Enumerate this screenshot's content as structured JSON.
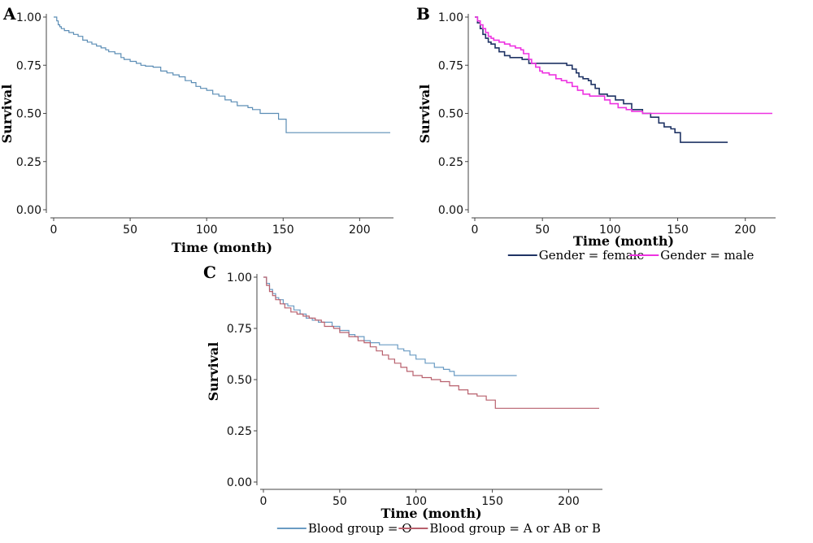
{
  "chart_data": [
    {
      "panel_label": "A",
      "type": "line",
      "step": true,
      "xlabel": "Time (month)",
      "ylabel": "Survival",
      "xlim": [
        0,
        220
      ],
      "ylim": [
        0,
        1
      ],
      "x_ticks": [
        "0",
        "50",
        "100",
        "150",
        "200"
      ],
      "y_ticks": [
        "0.00",
        "0.25",
        "0.50",
        "0.75",
        "1.00"
      ],
      "series": [
        {
          "color": "#5b8db5",
          "points": [
            [
              0,
              1.0
            ],
            [
              2,
              0.98
            ],
            [
              3,
              0.96
            ],
            [
              4,
              0.95
            ],
            [
              5,
              0.94
            ],
            [
              7,
              0.93
            ],
            [
              10,
              0.92
            ],
            [
              13,
              0.91
            ],
            [
              16,
              0.9
            ],
            [
              19,
              0.88
            ],
            [
              22,
              0.87
            ],
            [
              25,
              0.86
            ],
            [
              28,
              0.85
            ],
            [
              31,
              0.84
            ],
            [
              34,
              0.83
            ],
            [
              36,
              0.82
            ],
            [
              40,
              0.81
            ],
            [
              44,
              0.79
            ],
            [
              46,
              0.78
            ],
            [
              50,
              0.77
            ],
            [
              54,
              0.76
            ],
            [
              57,
              0.75
            ],
            [
              60,
              0.745
            ],
            [
              65,
              0.74
            ],
            [
              70,
              0.72
            ],
            [
              74,
              0.71
            ],
            [
              78,
              0.7
            ],
            [
              82,
              0.69
            ],
            [
              86,
              0.67
            ],
            [
              90,
              0.66
            ],
            [
              93,
              0.64
            ],
            [
              96,
              0.63
            ],
            [
              100,
              0.62
            ],
            [
              104,
              0.6
            ],
            [
              108,
              0.59
            ],
            [
              112,
              0.57
            ],
            [
              116,
              0.56
            ],
            [
              120,
              0.54
            ],
            [
              127,
              0.53
            ],
            [
              130,
              0.52
            ],
            [
              135,
              0.5
            ],
            [
              145,
              0.5
            ],
            [
              147,
              0.47
            ],
            [
              152,
              0.4
            ],
            [
              220,
              0.4
            ]
          ]
        }
      ]
    },
    {
      "panel_label": "B",
      "type": "line",
      "step": true,
      "xlabel": "Time (month)",
      "ylabel": "Survival",
      "xlim": [
        0,
        220
      ],
      "ylim": [
        0,
        1
      ],
      "x_ticks": [
        "0",
        "50",
        "100",
        "150",
        "200"
      ],
      "y_ticks": [
        "0.00",
        "0.25",
        "0.50",
        "0.75",
        "1.00"
      ],
      "legend": "bottom",
      "series": [
        {
          "name": "Gender = female",
          "color": "#1f3364",
          "points": [
            [
              0,
              1.0
            ],
            [
              2,
              0.97
            ],
            [
              4,
              0.94
            ],
            [
              6,
              0.91
            ],
            [
              8,
              0.89
            ],
            [
              10,
              0.87
            ],
            [
              12,
              0.86
            ],
            [
              15,
              0.84
            ],
            [
              18,
              0.82
            ],
            [
              22,
              0.8
            ],
            [
              26,
              0.79
            ],
            [
              32,
              0.79
            ],
            [
              35,
              0.78
            ],
            [
              38,
              0.78
            ],
            [
              40,
              0.76
            ],
            [
              50,
              0.76
            ],
            [
              60,
              0.76
            ],
            [
              67,
              0.76
            ],
            [
              68,
              0.75
            ],
            [
              72,
              0.73
            ],
            [
              75,
              0.71
            ],
            [
              77,
              0.69
            ],
            [
              80,
              0.68
            ],
            [
              84,
              0.67
            ],
            [
              86,
              0.65
            ],
            [
              89,
              0.63
            ],
            [
              92,
              0.6
            ],
            [
              98,
              0.59
            ],
            [
              104,
              0.57
            ],
            [
              110,
              0.55
            ],
            [
              116,
              0.52
            ],
            [
              124,
              0.5
            ],
            [
              130,
              0.48
            ],
            [
              136,
              0.45
            ],
            [
              140,
              0.43
            ],
            [
              145,
              0.42
            ],
            [
              148,
              0.4
            ],
            [
              152,
              0.35
            ],
            [
              187,
              0.35
            ]
          ]
        },
        {
          "name": "Gender = male",
          "color": "#ee33e1",
          "points": [
            [
              0,
              1.0
            ],
            [
              2,
              0.98
            ],
            [
              4,
              0.96
            ],
            [
              6,
              0.94
            ],
            [
              8,
              0.92
            ],
            [
              10,
              0.9
            ],
            [
              12,
              0.89
            ],
            [
              14,
              0.88
            ],
            [
              18,
              0.87
            ],
            [
              22,
              0.86
            ],
            [
              26,
              0.85
            ],
            [
              30,
              0.84
            ],
            [
              34,
              0.83
            ],
            [
              36,
              0.81
            ],
            [
              40,
              0.78
            ],
            [
              42,
              0.76
            ],
            [
              45,
              0.74
            ],
            [
              48,
              0.72
            ],
            [
              50,
              0.71
            ],
            [
              55,
              0.7
            ],
            [
              60,
              0.68
            ],
            [
              64,
              0.67
            ],
            [
              68,
              0.66
            ],
            [
              72,
              0.64
            ],
            [
              76,
              0.62
            ],
            [
              80,
              0.6
            ],
            [
              85,
              0.59
            ],
            [
              92,
              0.59
            ],
            [
              96,
              0.57
            ],
            [
              100,
              0.55
            ],
            [
              106,
              0.53
            ],
            [
              112,
              0.52
            ],
            [
              116,
              0.51
            ],
            [
              120,
              0.51
            ],
            [
              124,
              0.5
            ],
            [
              220,
              0.5
            ]
          ]
        }
      ]
    },
    {
      "panel_label": "C",
      "type": "line",
      "step": true,
      "xlabel": "Time (month)",
      "ylabel": "Survival",
      "xlim": [
        0,
        220
      ],
      "ylim": [
        0,
        1
      ],
      "x_ticks": [
        "0",
        "50",
        "100",
        "150",
        "200"
      ],
      "y_ticks": [
        "0.00",
        "0.25",
        "0.50",
        "0.75",
        "1.00"
      ],
      "legend": "bottom",
      "series": [
        {
          "name": "Blood group = O",
          "color": "#6a9bc3",
          "points": [
            [
              0,
              1.0
            ],
            [
              2,
              0.97
            ],
            [
              4,
              0.94
            ],
            [
              6,
              0.92
            ],
            [
              8,
              0.9
            ],
            [
              10,
              0.89
            ],
            [
              13,
              0.87
            ],
            [
              16,
              0.86
            ],
            [
              20,
              0.84
            ],
            [
              24,
              0.82
            ],
            [
              28,
              0.8
            ],
            [
              32,
              0.79
            ],
            [
              36,
              0.78
            ],
            [
              40,
              0.78
            ],
            [
              45,
              0.76
            ],
            [
              50,
              0.74
            ],
            [
              56,
              0.72
            ],
            [
              60,
              0.71
            ],
            [
              66,
              0.69
            ],
            [
              70,
              0.68
            ],
            [
              76,
              0.67
            ],
            [
              80,
              0.67
            ],
            [
              88,
              0.65
            ],
            [
              92,
              0.64
            ],
            [
              96,
              0.62
            ],
            [
              100,
              0.6
            ],
            [
              106,
              0.58
            ],
            [
              112,
              0.56
            ],
            [
              118,
              0.55
            ],
            [
              122,
              0.54
            ],
            [
              125,
              0.52
            ],
            [
              166,
              0.52
            ]
          ]
        },
        {
          "name": "Blood group = A or AB or B",
          "color": "#b8606d",
          "points": [
            [
              0,
              1.0
            ],
            [
              2,
              0.96
            ],
            [
              4,
              0.93
            ],
            [
              6,
              0.91
            ],
            [
              8,
              0.89
            ],
            [
              11,
              0.87
            ],
            [
              14,
              0.85
            ],
            [
              18,
              0.83
            ],
            [
              22,
              0.82
            ],
            [
              26,
              0.81
            ],
            [
              30,
              0.8
            ],
            [
              34,
              0.79
            ],
            [
              38,
              0.78
            ],
            [
              40,
              0.76
            ],
            [
              46,
              0.75
            ],
            [
              50,
              0.73
            ],
            [
              56,
              0.71
            ],
            [
              62,
              0.69
            ],
            [
              66,
              0.68
            ],
            [
              70,
              0.66
            ],
            [
              74,
              0.64
            ],
            [
              78,
              0.62
            ],
            [
              82,
              0.6
            ],
            [
              86,
              0.58
            ],
            [
              90,
              0.56
            ],
            [
              94,
              0.54
            ],
            [
              98,
              0.52
            ],
            [
              104,
              0.51
            ],
            [
              110,
              0.5
            ],
            [
              116,
              0.49
            ],
            [
              122,
              0.47
            ],
            [
              128,
              0.45
            ],
            [
              134,
              0.43
            ],
            [
              140,
              0.42
            ],
            [
              146,
              0.4
            ],
            [
              152,
              0.36
            ],
            [
              220,
              0.36
            ]
          ]
        }
      ]
    }
  ]
}
